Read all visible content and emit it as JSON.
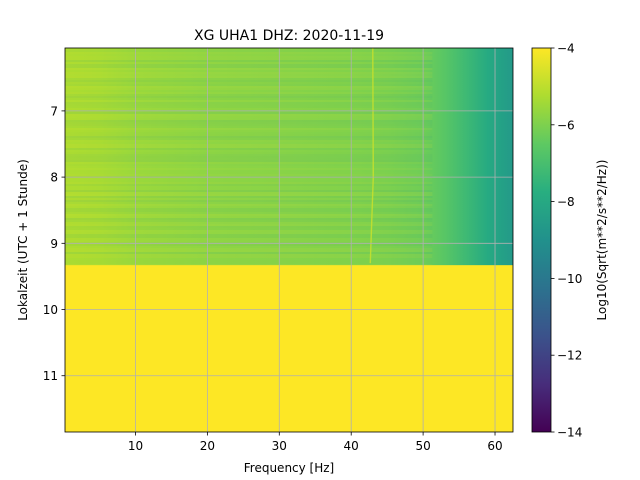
{
  "chart_data": {
    "type": "heatmap",
    "title": "XG UHA1  DHZ: 2020-11-19",
    "xlabel": "Frequency [Hz]",
    "ylabel": "Lokalzeit (UTC + 1 Stunde)",
    "xlim": [
      0.2,
      62.5
    ],
    "ylim": [
      11.85,
      6.05
    ],
    "y_inverted": true,
    "x_ticks": [
      10,
      20,
      30,
      40,
      50,
      60
    ],
    "y_ticks": [
      7,
      8,
      9,
      10,
      11
    ],
    "grid": true,
    "data_end_time": 9.33,
    "fill_value": -4,
    "colorbar": {
      "label": "Log10(Sqrt(m**2/s**2/Hz))",
      "colormap": "viridis",
      "vmin": -14,
      "vmax": -4,
      "ticks": [
        -4,
        -6,
        -8,
        -10,
        -12,
        -14
      ]
    },
    "spectral_profile": {
      "frequency": [
        0.2,
        5,
        10,
        20,
        30,
        40,
        45,
        50,
        53,
        56,
        59,
        62.5
      ],
      "log_amplitude": [
        -5.2,
        -5.3,
        -5.5,
        -5.7,
        -5.8,
        -5.9,
        -6.0,
        -6.2,
        -6.6,
        -7.2,
        -7.9,
        -8.6
      ]
    },
    "features": [
      {
        "kind": "narrow_line",
        "frequency": 43,
        "time_start": 6.05,
        "time_end": 9.3,
        "log_amplitude": -4.8
      }
    ]
  }
}
